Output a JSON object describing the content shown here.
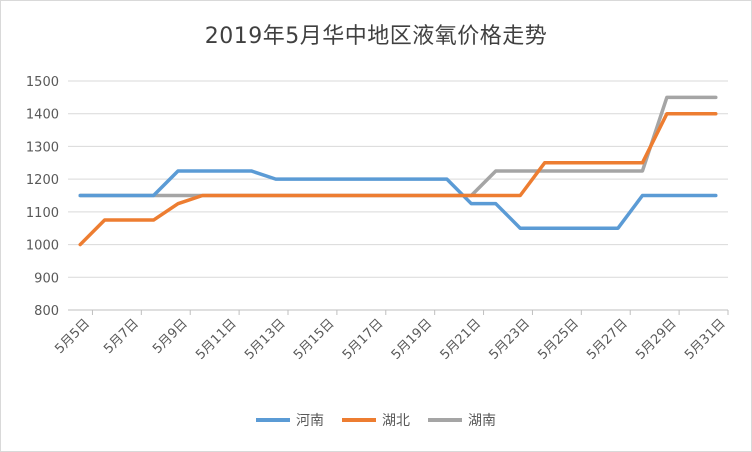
{
  "chart_data": {
    "type": "line",
    "title": "2019年5月华中地区液氧价格走势",
    "x": [
      "5月5日",
      "5月6日",
      "5月7日",
      "5月8日",
      "5月9日",
      "5月10日",
      "5月11日",
      "5月12日",
      "5月13日",
      "5月14日",
      "5月15日",
      "5月16日",
      "5月17日",
      "5月18日",
      "5月19日",
      "5月20日",
      "5月21日",
      "5月22日",
      "5月23日",
      "5月24日",
      "5月25日",
      "5月26日",
      "5月27日",
      "5月28日",
      "5月29日",
      "5月30日",
      "5月31日"
    ],
    "x_tick_labels": [
      "5月5日",
      "5月7日",
      "5月9日",
      "5月11日",
      "5月13日",
      "5月15日",
      "5月17日",
      "5月19日",
      "5月21日",
      "5月23日",
      "5月25日",
      "5月27日",
      "5月29日",
      "5月31日"
    ],
    "ylim": [
      800,
      1500
    ],
    "yticks": [
      800,
      900,
      1000,
      1100,
      1200,
      1300,
      1400,
      1500
    ],
    "grid": true,
    "legend": "bottom",
    "series": [
      {
        "name": "河南",
        "color": "#5B9BD5",
        "values": [
          1150,
          1150,
          1150,
          1150,
          1225,
          1225,
          1225,
          1225,
          1200,
          1200,
          1200,
          1200,
          1200,
          1200,
          1200,
          1200,
          1125,
          1125,
          1050,
          1050,
          1050,
          1050,
          1050,
          1150,
          1150,
          1150,
          1150
        ]
      },
      {
        "name": "湖北",
        "color": "#ED7D31",
        "values": [
          1000,
          1075,
          1075,
          1075,
          1125,
          1150,
          1150,
          1150,
          1150,
          1150,
          1150,
          1150,
          1150,
          1150,
          1150,
          1150,
          1150,
          1150,
          1150,
          1250,
          1250,
          1250,
          1250,
          1250,
          1400,
          1400,
          1400
        ]
      },
      {
        "name": "湖南",
        "color": "#A5A5A5",
        "values": [
          1150,
          1150,
          1150,
          1150,
          1150,
          1150,
          1150,
          1150,
          1150,
          1150,
          1150,
          1150,
          1150,
          1150,
          1150,
          1150,
          1150,
          1225,
          1225,
          1225,
          1225,
          1225,
          1225,
          1225,
          1450,
          1450,
          1450
        ]
      }
    ]
  }
}
